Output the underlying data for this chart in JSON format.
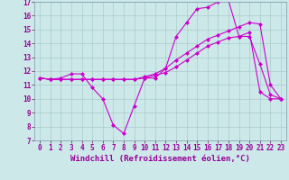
{
  "title": "",
  "xlabel": "Windchill (Refroidissement éolien,°C)",
  "ylabel": "",
  "bg_color": "#cce8e8",
  "grid_color": "#aacccc",
  "line_color": "#cc00cc",
  "xlim": [
    -0.5,
    23.5
  ],
  "ylim": [
    7,
    17
  ],
  "xticks": [
    0,
    1,
    2,
    3,
    4,
    5,
    6,
    7,
    8,
    9,
    10,
    11,
    12,
    13,
    14,
    15,
    16,
    17,
    18,
    19,
    20,
    21,
    22,
    23
  ],
  "yticks": [
    7,
    8,
    9,
    10,
    11,
    12,
    13,
    14,
    15,
    16,
    17
  ],
  "line1_x": [
    0,
    1,
    2,
    3,
    4,
    5,
    6,
    7,
    8,
    9,
    10,
    11,
    12,
    13,
    14,
    15,
    16,
    17,
    18,
    19,
    20,
    21,
    22,
    23
  ],
  "line1_y": [
    11.5,
    11.4,
    11.5,
    11.8,
    11.8,
    10.8,
    10.0,
    8.1,
    7.5,
    9.5,
    11.5,
    11.5,
    12.2,
    14.5,
    15.5,
    16.5,
    16.6,
    17.0,
    17.1,
    14.5,
    14.5,
    12.5,
    10.3,
    10.0
  ],
  "line2_x": [
    0,
    1,
    2,
    3,
    4,
    5,
    6,
    7,
    8,
    9,
    10,
    11,
    12,
    13,
    14,
    15,
    16,
    17,
    18,
    19,
    20,
    21,
    22,
    23
  ],
  "line2_y": [
    11.5,
    11.4,
    11.4,
    11.4,
    11.4,
    11.4,
    11.4,
    11.4,
    11.4,
    11.4,
    11.6,
    11.8,
    12.2,
    12.8,
    13.3,
    13.8,
    14.3,
    14.6,
    14.9,
    15.2,
    15.5,
    15.4,
    11.0,
    10.0
  ],
  "line3_x": [
    0,
    1,
    2,
    3,
    4,
    5,
    6,
    7,
    8,
    9,
    10,
    11,
    12,
    13,
    14,
    15,
    16,
    17,
    18,
    19,
    20,
    21,
    22,
    23
  ],
  "line3_y": [
    11.5,
    11.4,
    11.4,
    11.4,
    11.4,
    11.4,
    11.4,
    11.4,
    11.4,
    11.4,
    11.5,
    11.7,
    11.9,
    12.3,
    12.8,
    13.3,
    13.8,
    14.1,
    14.4,
    14.5,
    14.8,
    10.5,
    10.0,
    10.0
  ],
  "marker": "D",
  "markersize": 2.0,
  "linewidth": 0.8,
  "xlabel_fontsize": 6.5,
  "tick_fontsize": 5.5
}
